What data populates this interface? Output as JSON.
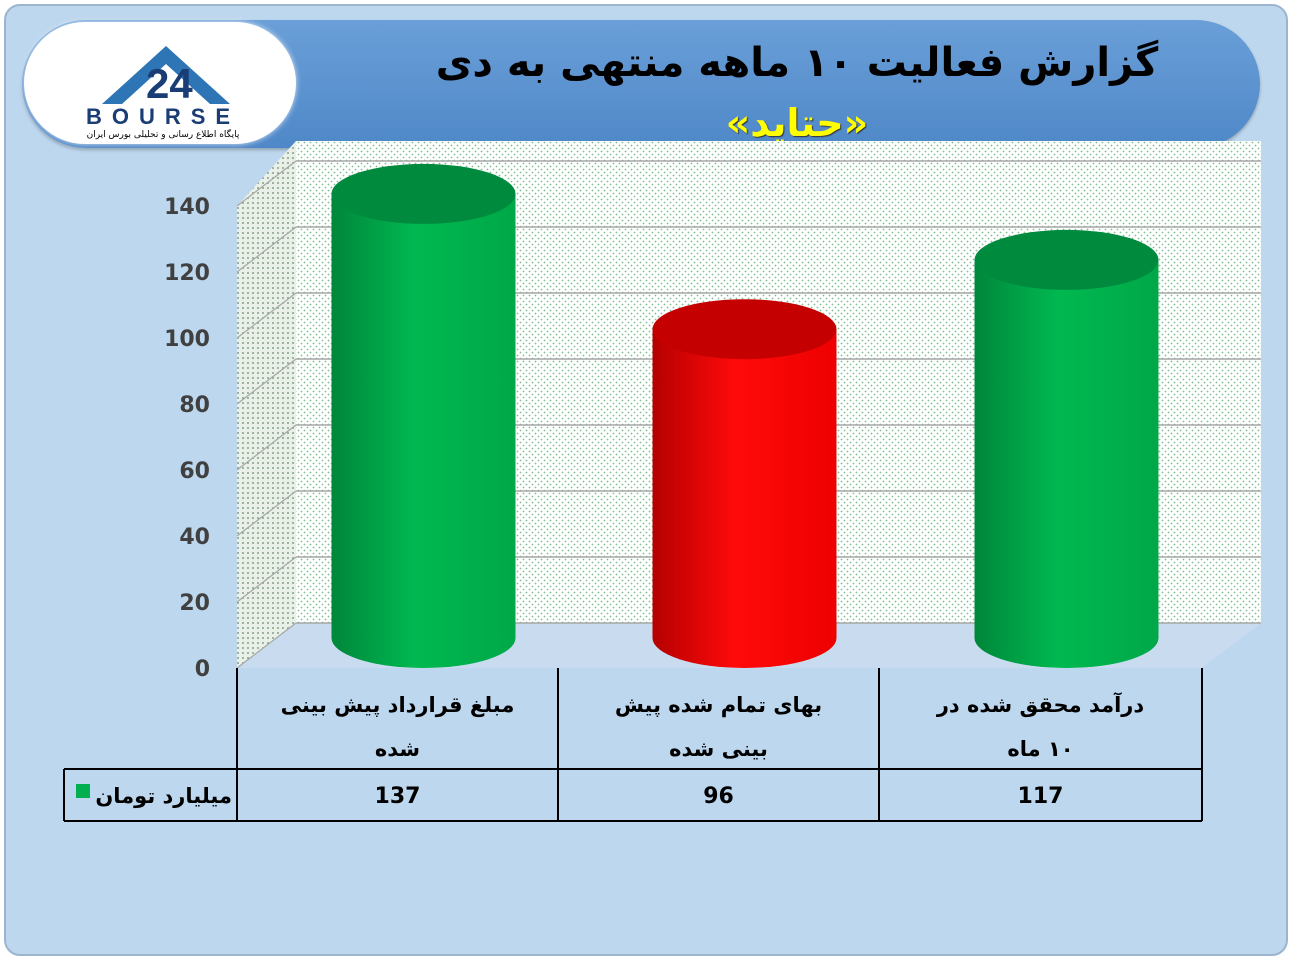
{
  "header": {
    "title": "گزارش فعالیت ۱۰ ماهه منتهی به دی",
    "subtitle": "«حتاید»"
  },
  "logo": {
    "text": "BOURSE",
    "number": "24",
    "tagline": "پایگاه اطلاع رسانی و تحلیلی بورس ایران"
  },
  "chart_data": {
    "type": "bar",
    "categories": [
      [
        "مبلغ قرارداد پیش بینی",
        "شده"
      ],
      [
        "بهای تمام شده پیش",
        "بینی شده"
      ],
      [
        "درآمد محقق شده در",
        "۱۰ ماه"
      ]
    ],
    "series": [
      {
        "name": "میلیارد تومان",
        "values": [
          137,
          96,
          117
        ]
      }
    ],
    "value_labels": [
      "137",
      "96",
      "117"
    ],
    "bar_colors": [
      "#00b050",
      "#ff0000",
      "#00b050"
    ],
    "legend_color": "#00b050",
    "ylim": [
      0,
      140
    ],
    "yticks": [
      0,
      20,
      40,
      60,
      80,
      100,
      120,
      140
    ],
    "grid": true,
    "data_table": true
  }
}
